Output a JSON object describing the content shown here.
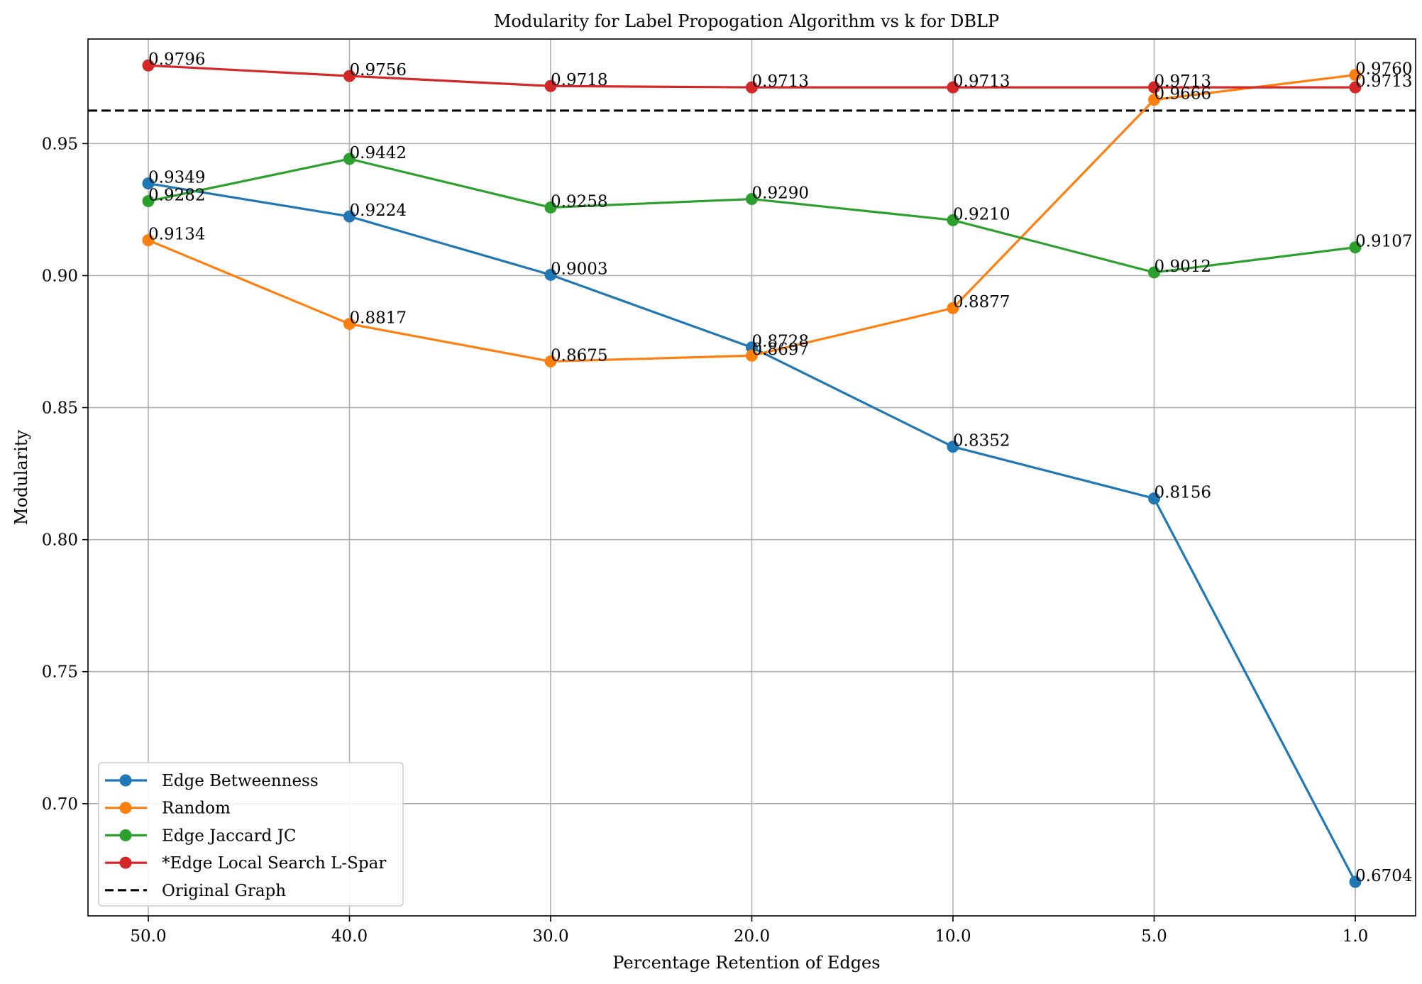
{
  "chart_data": {
    "type": "line",
    "title": "Modularity for Label Propogation Algorithm vs k for DBLP",
    "xlabel": "Percentage Retention of Edges",
    "ylabel": "Modularity",
    "categories": [
      "50.0",
      "40.0",
      "30.0",
      "20.0",
      "10.0",
      "5.0",
      "1.0"
    ],
    "ylim": [
      0.6575,
      0.9896
    ],
    "yticks": [
      "0.70",
      "0.75",
      "0.80",
      "0.85",
      "0.90",
      "0.95"
    ],
    "yticks_values": [
      0.7,
      0.75,
      0.8,
      0.85,
      0.9,
      0.95
    ],
    "grid": true,
    "legend_position": "lower-left",
    "series": [
      {
        "name": "Edge Betweenness",
        "color": "#1f77b4",
        "values": [
          0.9349,
          0.9224,
          0.9003,
          0.8728,
          0.8352,
          0.8156,
          0.6704
        ],
        "labels": [
          "0.9349",
          "0.9224",
          "0.9003",
          "0.8728",
          "0.8352",
          "0.8156",
          "0.6704"
        ]
      },
      {
        "name": "Random",
        "color": "#ff7f0e",
        "values": [
          0.9134,
          0.8817,
          0.8675,
          0.8697,
          0.8877,
          0.9666,
          0.976
        ],
        "labels": [
          "0.9134",
          "0.8817",
          "0.8675",
          "0.8697",
          "0.8877",
          "0.9666",
          "0.9760"
        ]
      },
      {
        "name": "Edge Jaccard JC",
        "color": "#2ca02c",
        "values": [
          0.9282,
          0.9442,
          0.9258,
          0.929,
          0.921,
          0.9012,
          0.9107
        ],
        "labels": [
          "0.9282",
          "0.9442",
          "0.9258",
          "0.9290",
          "0.9210",
          "0.9012",
          "0.9107"
        ]
      },
      {
        "name": "*Edge Local Search L-Spar",
        "color": "#d62728",
        "values": [
          0.9796,
          0.9756,
          0.9718,
          0.9713,
          0.9713,
          0.9713,
          0.9713
        ],
        "labels": [
          "0.9796",
          "0.9756",
          "0.9718",
          "0.9713",
          "0.9713",
          "0.9713",
          "0.9713"
        ]
      }
    ],
    "reference_line": {
      "name": "Original Graph",
      "value": 0.9625,
      "color": "#000000",
      "style": "dashed"
    }
  }
}
